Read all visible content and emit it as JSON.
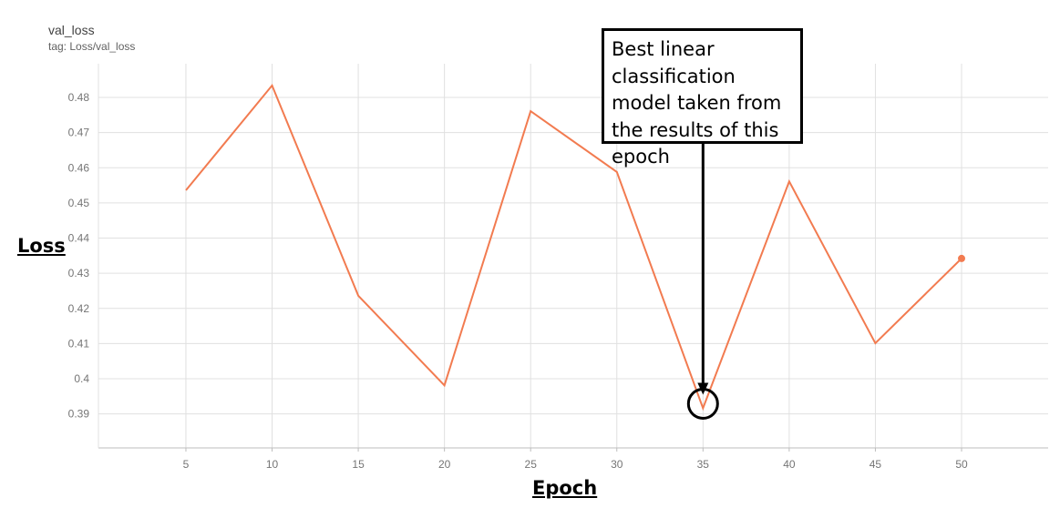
{
  "header": {
    "title": "val_loss",
    "tag": "tag: Loss/val_loss"
  },
  "annotation": {
    "text": "Best linear classification model taken from the results of this epoch"
  },
  "chart_data": {
    "type": "line",
    "title": "val_loss",
    "subtitle": "tag: Loss/val_loss",
    "xlabel": "Epoch",
    "ylabel": "Loss",
    "xlim": [
      0,
      55
    ],
    "ylim": [
      0.38,
      0.49
    ],
    "xticks": [
      5,
      10,
      15,
      20,
      25,
      30,
      35,
      40,
      45,
      50
    ],
    "yticks": [
      0.39,
      0.4,
      0.41,
      0.42,
      0.43,
      0.44,
      0.45,
      0.46,
      0.47,
      0.48
    ],
    "ytick_labels": [
      "0.39",
      "0.4",
      "0.41",
      "0.42",
      "0.43",
      "0.44",
      "0.45",
      "0.46",
      "0.47",
      "0.48"
    ],
    "grid": true,
    "series": [
      {
        "color": "#f27b50",
        "x": [
          5,
          10,
          15,
          20,
          25,
          30,
          35,
          40,
          45,
          50
        ],
        "y": [
          0.4536,
          0.4834,
          0.4236,
          0.3981,
          0.4761,
          0.4588,
          0.3916,
          0.4561,
          0.4101,
          0.4342
        ]
      }
    ],
    "highlight": {
      "x": 35,
      "y": 0.3916
    }
  }
}
